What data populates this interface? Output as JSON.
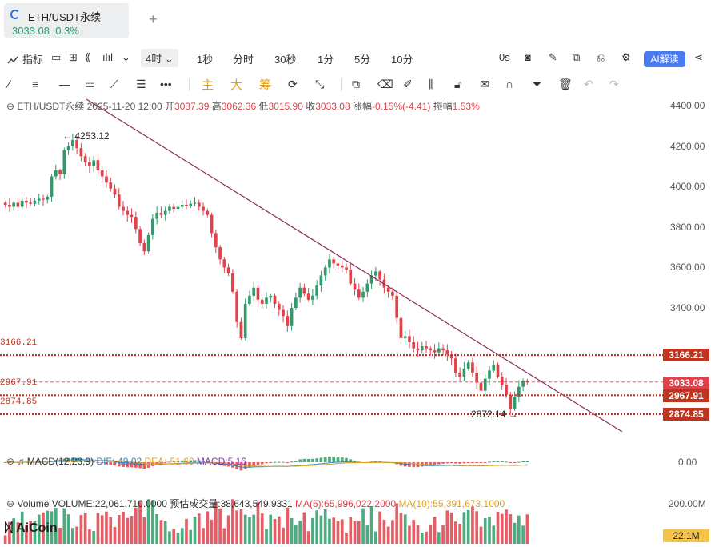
{
  "tab": {
    "title": "ETH/USDT永续",
    "price": "3033.08",
    "change": "0.3%"
  },
  "toolbar": {
    "indicators_label": "指标",
    "timeframe_active": "4时",
    "timeframes": [
      "1秒",
      "分时",
      "30秒",
      "1分",
      "5分",
      "10分"
    ],
    "countdown": "0s",
    "ai_label": "AI解读"
  },
  "drawing_tools": {
    "main": "主",
    "big": "大",
    "chip": "筹"
  },
  "info": {
    "symbol": "ETH/USDT永续",
    "datetime": "2025-11-20 12:00",
    "open_label": "开",
    "open": "3037.39",
    "high_label": "高",
    "high": "3062.36",
    "low_label": "低",
    "low": "3015.90",
    "close_label": "收",
    "close": "3033.08",
    "change_label": "涨幅",
    "change": "-0.15%(-4.41)",
    "amp_label": "振幅",
    "amp": "1.53%"
  },
  "chart_data": {
    "type": "candlestick",
    "timeframe": "4h",
    "y_ticks": [
      "4400.00",
      "4200.00",
      "4000.00",
      "3800.00",
      "3600.00",
      "3400.00"
    ],
    "ylim": [
      2860,
      4440
    ],
    "levels": [
      {
        "value": "3166.21",
        "color": "#c0331e"
      },
      {
        "value": "2967.91",
        "color": "#c0331e"
      },
      {
        "value": "2874.85",
        "color": "#c0331e"
      }
    ],
    "current_price": {
      "value": "3033.08",
      "color": "#e0414a"
    },
    "annotations": [
      {
        "text": "← 4253.12",
        "price": 4253.12
      },
      {
        "text": "2872.14 →",
        "price": 2872.14
      }
    ],
    "closes": [
      3910,
      3900,
      3920,
      3900,
      3930,
      3920,
      3915,
      3930,
      3940,
      3935,
      3950,
      4050,
      4080,
      4060,
      4180,
      4200,
      4230,
      4190,
      4150,
      4120,
      4100,
      4130,
      4080,
      4050,
      4020,
      3990,
      3960,
      3900,
      3880,
      3860,
      3850,
      3790,
      3720,
      3680,
      3760,
      3840,
      3870,
      3860,
      3880,
      3900,
      3890,
      3900,
      3910,
      3905,
      3915,
      3920,
      3900,
      3880,
      3860,
      3770,
      3700,
      3640,
      3600,
      3570,
      3480,
      3330,
      3250,
      3420,
      3460,
      3500,
      3440,
      3420,
      3450,
      3460,
      3420,
      3390,
      3360,
      3310,
      3400,
      3450,
      3500,
      3470,
      3440,
      3460,
      3510,
      3560,
      3600,
      3640,
      3620,
      3610,
      3600,
      3590,
      3520,
      3490,
      3450,
      3480,
      3520,
      3560,
      3580,
      3540,
      3500,
      3480,
      3460,
      3350,
      3250,
      3260,
      3230,
      3200,
      3190,
      3210,
      3200,
      3190,
      3180,
      3200,
      3190,
      3170,
      3150,
      3080,
      3060,
      3100,
      3130,
      3080,
      3030,
      2990,
      3050,
      3090,
      3120,
      3060,
      3020,
      2970,
      2900,
      2960,
      3010,
      3040,
      3033
    ],
    "macd": {
      "label": "MACD(12,26,9)",
      "dif_label": "DIF:",
      "dif": "-49.02",
      "dea_label": "DEA:",
      "dea": "-51.60",
      "macd_label": "MACD:",
      "macd": "5.16",
      "zero_tick": "0.00"
    },
    "volume": {
      "label": "Volume",
      "volume_label": "VOLUME:",
      "volume": "22,061,710.0000",
      "est_label": "预估成交量:",
      "est": "38,643,549.9331",
      "ma5_label": "MA(5):",
      "ma5": "65,996,022.2000",
      "ma10_label": "MA(10):",
      "ma10": "55,391,673.1000",
      "top_tick": "200.00M",
      "current": "22.1M"
    }
  },
  "watermark": "AiCoin",
  "colors": {
    "up": "#2e9c6a",
    "down": "#e0414a",
    "trendline": "#8e2a5e",
    "level": "#c0331e",
    "dif": "#2e86c1",
    "dea": "#e0a020"
  }
}
